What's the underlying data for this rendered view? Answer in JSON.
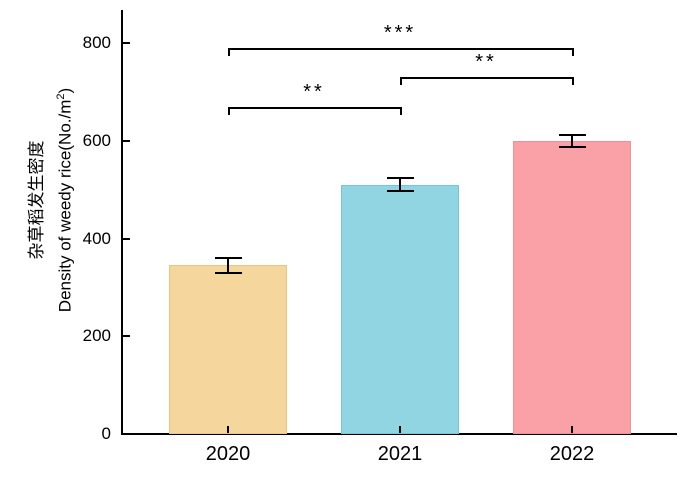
{
  "figure": {
    "background": "#ffffff",
    "axis_color": "#000000",
    "text_color": "#000000"
  },
  "ylabel": {
    "zh": "杂草稻发生密度",
    "en_pre": "Density of weedy rice(No./m",
    "en_sup": "2",
    "en_post": ")"
  },
  "chart_data": {
    "type": "bar",
    "title": "",
    "xlabel": "",
    "ylabel_zh": "杂草稻发生密度",
    "ylabel_en": "Density of weedy rice(No./m²)",
    "categories": [
      "2020",
      "2021",
      "2022"
    ],
    "values": [
      345,
      510,
      600
    ],
    "errors": [
      15,
      13,
      12
    ],
    "bar_colors": [
      "#F5D79E",
      "#92D5E2",
      "#F9A1A6"
    ],
    "bar_edge_colors": [
      "#E8C486",
      "#76C6D8",
      "#F28D94"
    ],
    "yticks": [
      0,
      200,
      400,
      600,
      800
    ],
    "ylim": [
      0,
      868
    ],
    "grid": false,
    "legend": null,
    "error_caps": true,
    "tick_direction": "in",
    "significance_brackets": [
      {
        "from": "2020",
        "to": "2022",
        "label": "***",
        "y": 790
      },
      {
        "from": "2021",
        "to": "2022",
        "label": "**",
        "y": 730
      },
      {
        "from": "2020",
        "to": "2021",
        "label": "**",
        "y": 670
      }
    ]
  }
}
